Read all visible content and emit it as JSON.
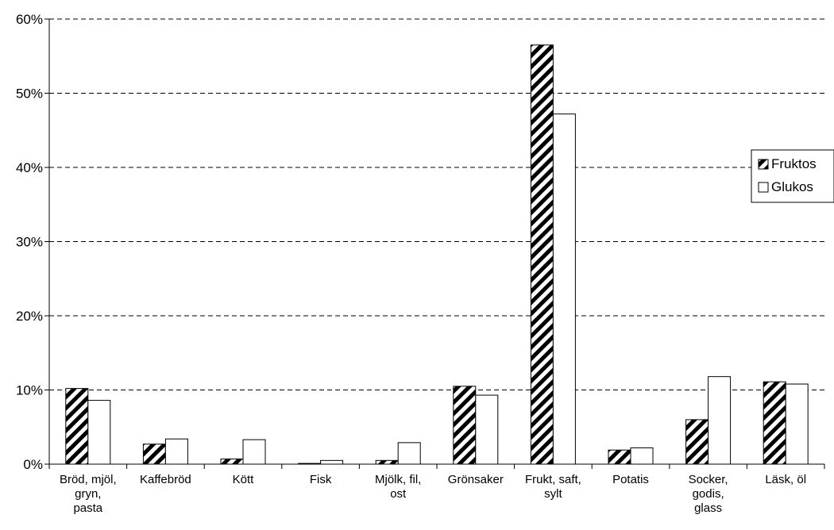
{
  "chart_data": {
    "type": "bar",
    "categories": [
      [
        "Bröd, mjöl,",
        "gryn,",
        "pasta"
      ],
      [
        "Kaffebröd"
      ],
      [
        "Kött"
      ],
      [
        "Fisk"
      ],
      [
        "Mjölk, fil,",
        "ost"
      ],
      [
        "Grönsaker"
      ],
      [
        "Frukt, saft,",
        "sylt"
      ],
      [
        "Potatis"
      ],
      [
        "Socker,",
        "godis,",
        "glass"
      ],
      [
        "Läsk, öl"
      ]
    ],
    "series": [
      {
        "name": "Fruktos",
        "fill": "hatched",
        "values": [
          10.2,
          2.7,
          0.7,
          0.1,
          0.5,
          10.5,
          56.5,
          1.9,
          6.0,
          11.1
        ]
      },
      {
        "name": "Glukos",
        "fill": "white",
        "values": [
          8.6,
          3.4,
          3.3,
          0.5,
          2.9,
          9.3,
          47.2,
          2.2,
          11.8,
          10.8
        ]
      }
    ],
    "y_ticks": [
      "0%",
      "10%",
      "20%",
      "30%",
      "40%",
      "50%",
      "60%"
    ],
    "ylim": [
      0,
      60
    ],
    "grid": "dashed horizontal",
    "legend_position": "right",
    "colors": {
      "bar_stroke": "#000000",
      "bar_fill": "#ffffff",
      "hatch": "#000000",
      "grid": "#000000"
    }
  }
}
